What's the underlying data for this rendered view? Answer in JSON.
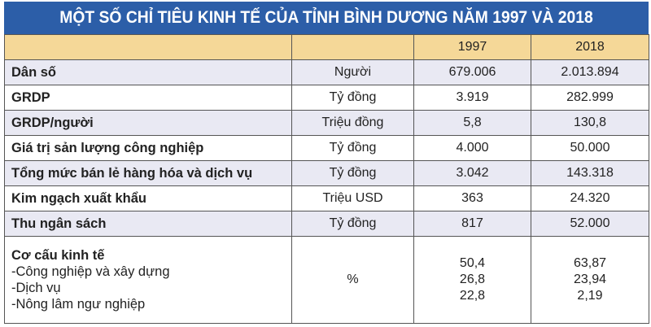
{
  "title": "MỘT SỐ CHỈ TIÊU KINH TẾ CỦA TỈNH BÌNH DƯƠNG NĂM 1997 VÀ 2018",
  "columns": [
    "",
    "",
    "1997",
    "2018"
  ],
  "rows": [
    {
      "label": "Dân số",
      "unit": "Người",
      "v1997": "679.006",
      "v2018": "2.013.894"
    },
    {
      "label": "GRDP",
      "unit": "Tỷ đồng",
      "v1997": "3.919",
      "v2018": "282.999"
    },
    {
      "label": "GRDP/người",
      "unit": "Triệu đồng",
      "v1997": "5,8",
      "v2018": "130,8"
    },
    {
      "label": "Giá trị sản lượng công nghiệp",
      "unit": "Tỷ đồng",
      "v1997": "4.000",
      "v2018": "50.000"
    },
    {
      "label": "Tổng mức bán lẻ hàng hóa và dịch vụ",
      "unit": "Tỷ đồng",
      "v1997": "3.042",
      "v2018": "143.318"
    },
    {
      "label": "Kim ngạch xuất khẩu",
      "unit": "Triệu USD",
      "v1997": "363",
      "v2018": "24.320"
    },
    {
      "label": "Thu ngân sách",
      "unit": "Tỷ đồng",
      "v1997": "817",
      "v2018": "52.000"
    }
  ],
  "structure": {
    "label": "Cơ cấu kinh tế",
    "unit": "%",
    "items": [
      {
        "label": "-Công nghiệp và xây dựng",
        "v1997": "50,4",
        "v2018": "63,87"
      },
      {
        "label": "-Dịch vụ",
        "v1997": "26,8",
        "v2018": "23,94"
      },
      {
        "label": "-Nông lâm ngư nghiệp",
        "v1997": "22,8",
        "v2018": "2,19"
      }
    ]
  },
  "colors": {
    "title_bg": "#2c5ea8",
    "year_row_bg": "#f5d898",
    "alt_row_bg": "#e9e9f3"
  }
}
